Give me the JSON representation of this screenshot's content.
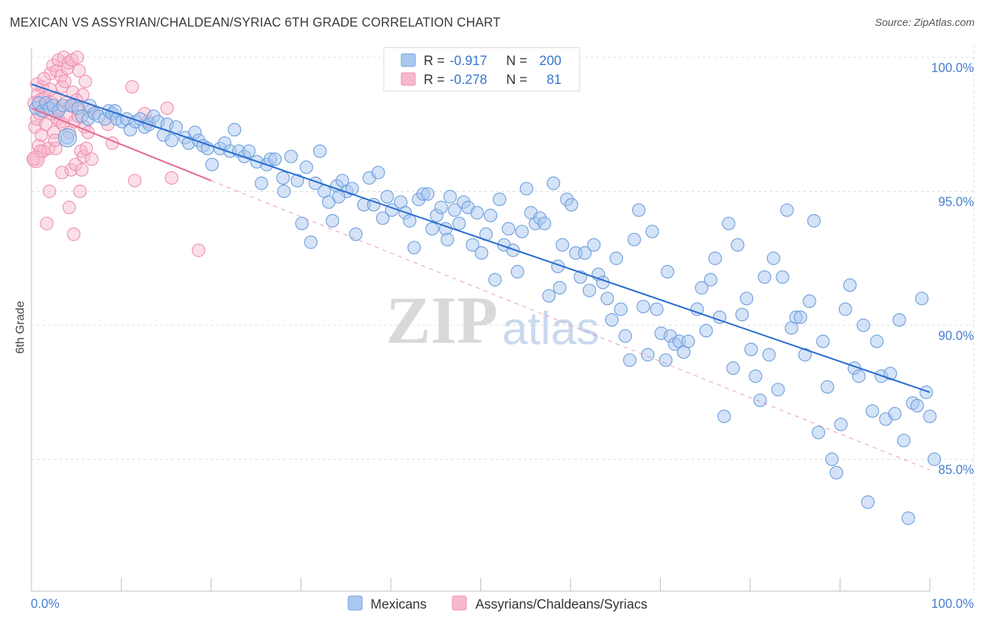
{
  "title": "MEXICAN VS ASSYRIAN/CHALDEAN/SYRIAC 6TH GRADE CORRELATION CHART",
  "source": "Source: ZipAtlas.com",
  "watermark": {
    "zip": "ZIP",
    "atlas": "atlas"
  },
  "colors": {
    "blue_fill": "#aac8f0",
    "blue_stroke": "#6f9fdc",
    "blue_line": "#2a6fd0",
    "pink_fill": "#f7b8cc",
    "pink_stroke": "#ee8fb0",
    "pink_line": "#e46a94",
    "grid": "#dcdcdc",
    "tick_text": "#4a7fd0"
  },
  "legend": {
    "r_label": "R =",
    "n_label": "N =",
    "series": [
      {
        "r": "-0.917",
        "n": "200"
      },
      {
        "r": "-0.278",
        "n": "81"
      }
    ]
  },
  "chart_data": {
    "type": "scatter",
    "xlabel": "",
    "ylabel": "6th Grade",
    "xlim": [
      0,
      100
    ],
    "ylim": [
      80.0,
      101.0
    ],
    "x_tick_labels": [
      "0.0%",
      "100.0%"
    ],
    "y_ticks": [
      85,
      90,
      95,
      100
    ],
    "y_tick_labels": [
      "85.0%",
      "90.0%",
      "95.0%",
      "100.0%"
    ],
    "grid": true,
    "legend_position": "bottom",
    "series": [
      {
        "name": "Mexicans",
        "color": "#aac8f0",
        "trend": {
          "x0": 0,
          "y0": 99.0,
          "x1": 100,
          "y1": 87.5,
          "dashed_to": null
        },
        "points": [
          [
            0.5,
            98.1
          ],
          [
            0.8,
            98.3
          ],
          [
            1.2,
            98.0
          ],
          [
            1.6,
            98.3
          ],
          [
            2.0,
            98.1
          ],
          [
            2.4,
            98.2
          ],
          [
            3.0,
            98.0
          ],
          [
            3.5,
            98.2
          ],
          [
            4.0,
            97.0
          ],
          [
            4.5,
            98.2
          ],
          [
            5.2,
            98.1
          ],
          [
            5.6,
            97.8
          ],
          [
            6.3,
            97.7
          ],
          [
            6.5,
            98.2
          ],
          [
            7.0,
            97.9
          ],
          [
            7.5,
            97.8
          ],
          [
            8.2,
            97.7
          ],
          [
            8.6,
            98.0
          ],
          [
            9.0,
            97.9
          ],
          [
            9.3,
            98.0
          ],
          [
            9.5,
            97.7
          ],
          [
            10.1,
            97.6
          ],
          [
            10.6,
            97.7
          ],
          [
            11.0,
            97.3
          ],
          [
            11.6,
            97.6
          ],
          [
            12.1,
            97.7
          ],
          [
            12.6,
            97.4
          ],
          [
            13.1,
            97.5
          ],
          [
            13.6,
            97.8
          ],
          [
            14.1,
            97.6
          ],
          [
            14.7,
            97.1
          ],
          [
            15.1,
            97.5
          ],
          [
            15.6,
            96.9
          ],
          [
            16.1,
            97.4
          ],
          [
            17.1,
            97.0
          ],
          [
            17.5,
            96.8
          ],
          [
            18.2,
            97.2
          ],
          [
            18.6,
            96.9
          ],
          [
            19.1,
            96.7
          ],
          [
            19.6,
            96.6
          ],
          [
            20.1,
            96.0
          ],
          [
            21.0,
            96.6
          ],
          [
            21.5,
            96.8
          ],
          [
            22.1,
            96.5
          ],
          [
            22.6,
            97.3
          ],
          [
            23.1,
            96.5
          ],
          [
            23.7,
            96.3
          ],
          [
            24.2,
            96.5
          ],
          [
            25.1,
            96.1
          ],
          [
            25.6,
            95.3
          ],
          [
            26.2,
            96.0
          ],
          [
            26.6,
            96.2
          ],
          [
            27.1,
            96.2
          ],
          [
            28.0,
            95.5
          ],
          [
            28.1,
            95.0
          ],
          [
            28.9,
            96.3
          ],
          [
            29.6,
            95.4
          ],
          [
            30.1,
            93.8
          ],
          [
            30.6,
            95.9
          ],
          [
            31.1,
            93.1
          ],
          [
            31.6,
            95.3
          ],
          [
            32.1,
            96.5
          ],
          [
            32.6,
            95.0
          ],
          [
            33.1,
            94.6
          ],
          [
            33.5,
            93.9
          ],
          [
            34.0,
            95.2
          ],
          [
            34.6,
            95.4
          ],
          [
            35.1,
            95.0
          ],
          [
            35.7,
            95.1
          ],
          [
            36.1,
            93.4
          ],
          [
            37.0,
            94.5
          ],
          [
            37.6,
            95.5
          ],
          [
            38.1,
            94.5
          ],
          [
            38.6,
            95.7
          ],
          [
            39.1,
            94.0
          ],
          [
            39.6,
            94.8
          ],
          [
            40.1,
            94.3
          ],
          [
            41.1,
            94.6
          ],
          [
            41.6,
            94.2
          ],
          [
            42.1,
            93.9
          ],
          [
            42.6,
            92.9
          ],
          [
            43.1,
            94.7
          ],
          [
            43.6,
            94.9
          ],
          [
            44.1,
            94.9
          ],
          [
            44.6,
            93.6
          ],
          [
            45.1,
            94.1
          ],
          [
            45.6,
            94.4
          ],
          [
            46.1,
            93.6
          ],
          [
            46.6,
            94.8
          ],
          [
            47.1,
            94.3
          ],
          [
            47.6,
            93.8
          ],
          [
            48.1,
            94.6
          ],
          [
            48.6,
            94.4
          ],
          [
            49.1,
            93.0
          ],
          [
            49.6,
            94.2
          ],
          [
            50.1,
            92.7
          ],
          [
            50.6,
            93.4
          ],
          [
            51.1,
            94.1
          ],
          [
            51.6,
            91.7
          ],
          [
            52.1,
            94.7
          ],
          [
            52.6,
            93.0
          ],
          [
            53.1,
            93.6
          ],
          [
            53.6,
            92.8
          ],
          [
            54.1,
            92.0
          ],
          [
            54.6,
            93.5
          ],
          [
            55.1,
            95.1
          ],
          [
            55.6,
            94.2
          ],
          [
            56.1,
            93.8
          ],
          [
            56.6,
            94.0
          ],
          [
            57.1,
            93.8
          ],
          [
            57.6,
            91.1
          ],
          [
            58.1,
            95.3
          ],
          [
            58.6,
            92.2
          ],
          [
            59.1,
            93.0
          ],
          [
            59.6,
            94.7
          ],
          [
            60.1,
            94.5
          ],
          [
            60.6,
            92.7
          ],
          [
            61.1,
            91.8
          ],
          [
            61.6,
            92.7
          ],
          [
            62.1,
            91.3
          ],
          [
            62.6,
            93.0
          ],
          [
            63.1,
            91.9
          ],
          [
            63.6,
            91.6
          ],
          [
            64.1,
            91.0
          ],
          [
            64.6,
            90.2
          ],
          [
            65.1,
            92.5
          ],
          [
            65.6,
            90.6
          ],
          [
            66.1,
            89.6
          ],
          [
            66.6,
            88.7
          ],
          [
            67.1,
            93.2
          ],
          [
            67.6,
            94.3
          ],
          [
            68.1,
            90.7
          ],
          [
            68.6,
            88.9
          ],
          [
            69.1,
            93.5
          ],
          [
            69.6,
            90.6
          ],
          [
            70.1,
            89.7
          ],
          [
            70.6,
            88.7
          ],
          [
            71.1,
            89.6
          ],
          [
            71.6,
            89.3
          ],
          [
            72.1,
            89.4
          ],
          [
            72.6,
            89.0
          ],
          [
            73.1,
            89.4
          ],
          [
            74.1,
            90.6
          ],
          [
            74.6,
            91.4
          ],
          [
            75.1,
            89.8
          ],
          [
            75.6,
            91.7
          ],
          [
            76.1,
            92.5
          ],
          [
            76.6,
            90.3
          ],
          [
            77.1,
            86.6
          ],
          [
            77.6,
            93.8
          ],
          [
            78.1,
            88.4
          ],
          [
            78.6,
            93.0
          ],
          [
            79.1,
            90.4
          ],
          [
            79.6,
            91.0
          ],
          [
            80.1,
            89.1
          ],
          [
            80.6,
            88.1
          ],
          [
            81.1,
            87.2
          ],
          [
            81.6,
            91.8
          ],
          [
            82.1,
            88.9
          ],
          [
            82.6,
            92.5
          ],
          [
            83.1,
            87.6
          ],
          [
            83.6,
            91.8
          ],
          [
            84.1,
            94.3
          ],
          [
            84.6,
            89.9
          ],
          [
            85.1,
            90.3
          ],
          [
            85.6,
            90.3
          ],
          [
            86.1,
            88.9
          ],
          [
            86.6,
            90.9
          ],
          [
            87.1,
            93.9
          ],
          [
            87.6,
            86.0
          ],
          [
            88.1,
            89.4
          ],
          [
            88.6,
            87.7
          ],
          [
            89.1,
            85.0
          ],
          [
            89.6,
            84.5
          ],
          [
            90.1,
            86.3
          ],
          [
            90.6,
            90.6
          ],
          [
            91.1,
            91.5
          ],
          [
            91.6,
            88.4
          ],
          [
            92.1,
            88.1
          ],
          [
            92.6,
            90.0
          ],
          [
            93.1,
            83.4
          ],
          [
            93.6,
            86.8
          ],
          [
            94.1,
            89.4
          ],
          [
            94.6,
            88.1
          ],
          [
            95.1,
            86.5
          ],
          [
            95.6,
            88.2
          ],
          [
            96.1,
            86.7
          ],
          [
            96.6,
            90.2
          ],
          [
            97.1,
            85.7
          ],
          [
            97.6,
            82.8
          ],
          [
            98.1,
            87.1
          ],
          [
            98.6,
            87.0
          ],
          [
            99.1,
            91.0
          ],
          [
            99.6,
            87.5
          ],
          [
            100.0,
            86.6
          ],
          [
            100.5,
            85.0
          ],
          [
            34.2,
            94.8
          ],
          [
            46.3,
            93.2
          ],
          [
            58.8,
            91.4
          ],
          [
            70.8,
            92.0
          ]
        ]
      },
      {
        "name": "Assyrians/Chaldeans/Syriacs",
        "color": "#f7b8cc",
        "trend": {
          "x0": 0,
          "y0": 98.1,
          "x1": 20,
          "y1": 95.4,
          "dashed_to": {
            "x": 100,
            "y": 84.6
          }
        },
        "points": [
          [
            0.3,
            98.3
          ],
          [
            0.4,
            97.4
          ],
          [
            0.5,
            96.2
          ],
          [
            0.6,
            97.7
          ],
          [
            0.7,
            98.6
          ],
          [
            0.8,
            96.7
          ],
          [
            0.9,
            97.9
          ],
          [
            1.0,
            98.4
          ],
          [
            1.1,
            97.1
          ],
          [
            1.2,
            98.9
          ],
          [
            1.3,
            96.5
          ],
          [
            1.4,
            98.0
          ],
          [
            1.5,
            98.5
          ],
          [
            1.6,
            97.5
          ],
          [
            1.7,
            93.8
          ],
          [
            1.8,
            98.2
          ],
          [
            1.9,
            96.6
          ],
          [
            2.0,
            95.0
          ],
          [
            2.1,
            99.4
          ],
          [
            2.2,
            97.9
          ],
          [
            2.3,
            98.3
          ],
          [
            2.4,
            99.7
          ],
          [
            2.5,
            97.2
          ],
          [
            2.6,
            98.5
          ],
          [
            2.7,
            96.6
          ],
          [
            2.8,
            99.5
          ],
          [
            2.9,
            97.7
          ],
          [
            3.0,
            99.9
          ],
          [
            3.1,
            98.1
          ],
          [
            3.2,
            97.6
          ],
          [
            3.3,
            99.3
          ],
          [
            3.4,
            98.9
          ],
          [
            3.5,
            97.5
          ],
          [
            3.6,
            100.0
          ],
          [
            3.7,
            99.1
          ],
          [
            3.8,
            98.3
          ],
          [
            3.9,
            97.8
          ],
          [
            4.0,
            99.6
          ],
          [
            4.1,
            99.8
          ],
          [
            4.2,
            97.2
          ],
          [
            4.3,
            98.2
          ],
          [
            4.4,
            95.8
          ],
          [
            4.5,
            99.9
          ],
          [
            4.6,
            98.7
          ],
          [
            4.7,
            93.4
          ],
          [
            4.8,
            97.6
          ],
          [
            4.9,
            96.0
          ],
          [
            5.0,
            98.1
          ],
          [
            5.1,
            100.0
          ],
          [
            5.2,
            97.8
          ],
          [
            5.3,
            99.5
          ],
          [
            5.4,
            95.0
          ],
          [
            5.5,
            96.5
          ],
          [
            5.6,
            95.8
          ],
          [
            5.7,
            98.6
          ],
          [
            5.8,
            96.3
          ],
          [
            5.9,
            97.4
          ],
          [
            6.0,
            99.1
          ],
          [
            6.1,
            96.6
          ],
          [
            6.3,
            97.2
          ],
          [
            6.5,
            98.0
          ],
          [
            6.7,
            96.2
          ],
          [
            7.0,
            97.9
          ],
          [
            8.5,
            97.5
          ],
          [
            9.0,
            96.8
          ],
          [
            11.2,
            98.9
          ],
          [
            11.5,
            95.4
          ],
          [
            12.6,
            97.9
          ],
          [
            13.0,
            97.6
          ],
          [
            15.1,
            98.1
          ],
          [
            15.6,
            95.5
          ],
          [
            18.6,
            92.8
          ],
          [
            0.2,
            96.2
          ],
          [
            0.6,
            99.0
          ],
          [
            1.0,
            96.5
          ],
          [
            1.4,
            99.2
          ],
          [
            2.1,
            98.8
          ],
          [
            2.6,
            96.9
          ],
          [
            3.4,
            95.7
          ],
          [
            4.2,
            94.4
          ],
          [
            5.0,
            98.4
          ]
        ]
      }
    ]
  },
  "bottom_legend": [
    "Mexicans",
    "Assyrians/Chaldeans/Syriacs"
  ]
}
